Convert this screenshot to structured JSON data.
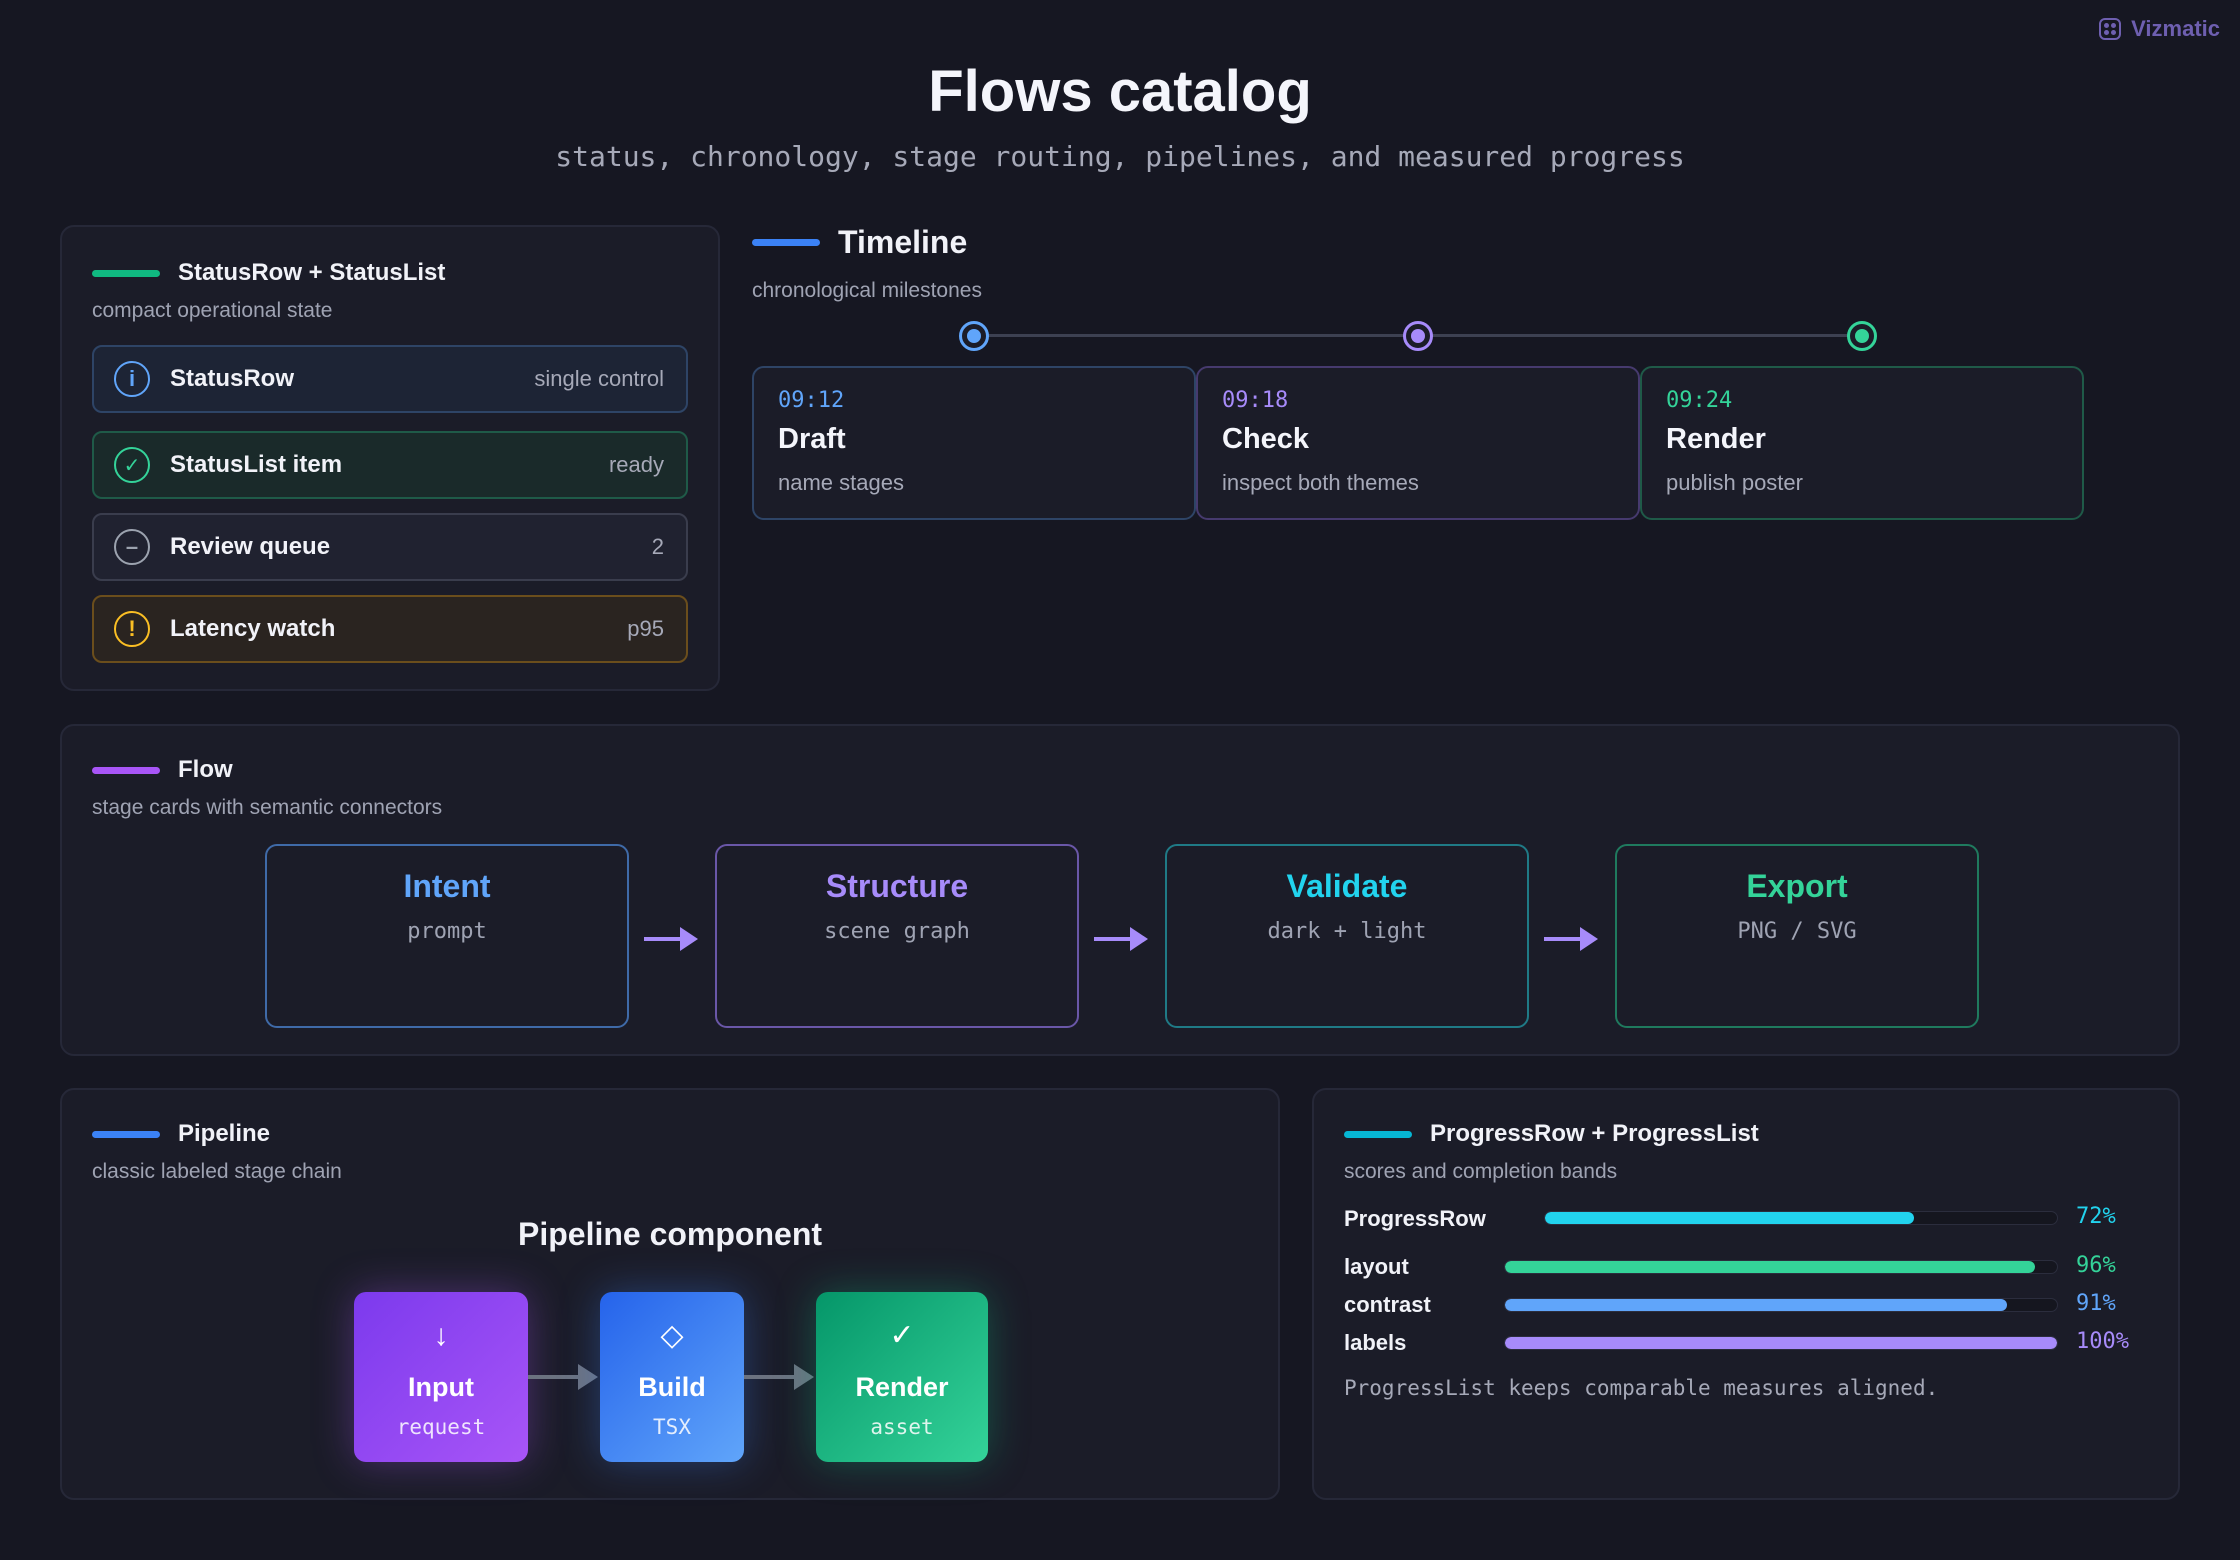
{
  "brand": {
    "name": "Vizmatic",
    "icon": "vizmatic-logo-icon"
  },
  "header": {
    "title": "Flows catalog",
    "subtitle": "status, chronology, stage routing, pipelines, and measured progress"
  },
  "colors": {
    "background": "#161722",
    "panel": "#1b1c28",
    "green": "#34d399",
    "blue": "#60a5fa",
    "purple": "#a78bfa",
    "cyan": "#22d3ee",
    "amber": "#fbbf24",
    "gray": "#9ca3af"
  },
  "status": {
    "title": "StatusRow + StatusList",
    "subtitle": "compact operational state",
    "accent": "#10b981",
    "items": [
      {
        "label": "StatusRow",
        "value": "single control",
        "icon": "info-icon",
        "glyph": "i",
        "tone": "info"
      },
      {
        "label": "StatusList item",
        "value": "ready",
        "icon": "check-circle-icon",
        "glyph": "✓",
        "tone": "success"
      },
      {
        "label": "Review queue",
        "value": "2",
        "icon": "minus-circle-icon",
        "glyph": "–",
        "tone": "neutral"
      },
      {
        "label": "Latency watch",
        "value": "p95",
        "icon": "warning-icon",
        "glyph": "!",
        "tone": "warning"
      }
    ]
  },
  "timeline": {
    "title": "Timeline",
    "subtitle": "chronological milestones",
    "items": [
      {
        "time": "09:12",
        "name": "Draft",
        "desc": "name stages",
        "color": "#60a5fa"
      },
      {
        "time": "09:18",
        "name": "Check",
        "desc": "inspect both themes",
        "color": "#a78bfa"
      },
      {
        "time": "09:24",
        "name": "Render",
        "desc": "publish poster",
        "color": "#34d399"
      }
    ]
  },
  "flow": {
    "title": "Flow",
    "subtitle": "stage cards with semantic connectors",
    "accent": "#a855f7",
    "stages": [
      {
        "name": "Intent",
        "sub": "prompt",
        "color": "#60a5fa"
      },
      {
        "name": "Structure",
        "sub": "scene graph",
        "color": "#a78bfa"
      },
      {
        "name": "Validate",
        "sub": "dark + light",
        "color": "#22d3ee"
      },
      {
        "name": "Export",
        "sub": "PNG / SVG",
        "color": "#34d399"
      }
    ],
    "connector_icon": "arrow-right-icon"
  },
  "pipeline": {
    "title": "Pipeline",
    "subtitle": "classic labeled stage chain",
    "heading": "Pipeline component",
    "accent": "#3b82f6",
    "nodes": [
      {
        "name": "Input",
        "sub": "request",
        "icon": "arrow-down-icon",
        "glyph": "↓"
      },
      {
        "name": "Build",
        "sub": "TSX",
        "icon": "diamond-icon",
        "glyph": "◇"
      },
      {
        "name": "Render",
        "sub": "asset",
        "icon": "check-icon",
        "glyph": "✓"
      }
    ]
  },
  "progress": {
    "title": "ProgressRow + ProgressList",
    "subtitle": "scores and completion bands",
    "accent": "#06b6d4",
    "row": {
      "label": "ProgressRow",
      "value": 0.72,
      "pct": "72%",
      "color": "#22d3ee"
    },
    "list": [
      {
        "label": "layout",
        "value": 0.96,
        "pct": "96%",
        "color": "#34d399"
      },
      {
        "label": "contrast",
        "value": 0.91,
        "pct": "91%",
        "color": "#60a5fa"
      },
      {
        "label": "labels",
        "value": 1.0,
        "pct": "100%",
        "color": "#a78bfa"
      }
    ],
    "note": "ProgressList keeps comparable measures aligned."
  }
}
